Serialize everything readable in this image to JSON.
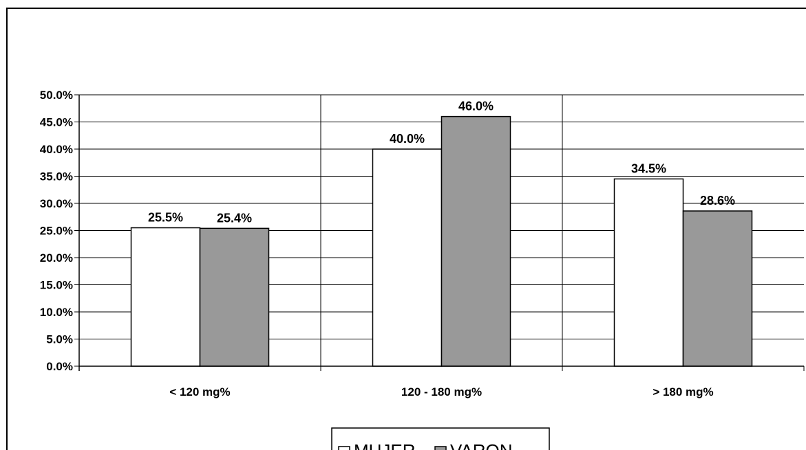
{
  "chart_data": {
    "type": "bar",
    "categories": [
      "< 120 mg%",
      "120 - 180 mg%",
      "> 180 mg%"
    ],
    "series": [
      {
        "name": "MUJER",
        "values": [
          25.5,
          40.0,
          34.5
        ],
        "labels": [
          "25.5%",
          "40.0%",
          "34.5%"
        ],
        "color": "#ffffff"
      },
      {
        "name": "VARON",
        "values": [
          25.4,
          46.0,
          28.6
        ],
        "labels": [
          "25.4%",
          "46.0%",
          "28.6%"
        ],
        "color": "#999999"
      }
    ],
    "yticks": [
      "0.0%",
      "5.0%",
      "10.0%",
      "15.0%",
      "20.0%",
      "25.0%",
      "30.0%",
      "35.0%",
      "40.0%",
      "45.0%",
      "50.0%"
    ],
    "ylim": [
      0,
      50
    ],
    "grid": true,
    "legend_position": "bottom"
  }
}
